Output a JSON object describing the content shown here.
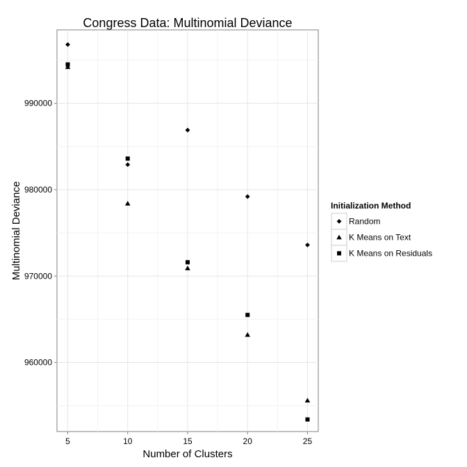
{
  "chart_data": {
    "type": "scatter",
    "title": "Congress Data: Multinomial Deviance",
    "xlabel": "Number of Clusters",
    "ylabel": "Multinomial Deviance",
    "xlim": [
      4.1,
      25.9
    ],
    "ylim": [
      952000,
      998500
    ],
    "x_ticks": [
      5,
      10,
      15,
      20,
      25
    ],
    "y_ticks": [
      960000,
      970000,
      980000,
      990000
    ],
    "grid": true,
    "legend": {
      "title": "Initialization Method",
      "position": "right"
    },
    "series": [
      {
        "name": "Random",
        "shape": "diamond",
        "x": [
          5,
          10,
          15,
          20,
          25
        ],
        "y": [
          996800,
          982900,
          986900,
          979200,
          973600
        ]
      },
      {
        "name": "K Means on Text",
        "shape": "triangle",
        "x": [
          5,
          10,
          15,
          20,
          25
        ],
        "y": [
          994200,
          978400,
          970900,
          963200,
          955600
        ]
      },
      {
        "name": "K Means on Residuals",
        "shape": "square",
        "x": [
          5,
          10,
          15,
          20,
          25
        ],
        "y": [
          994500,
          983600,
          971600,
          965500,
          953400
        ]
      }
    ]
  }
}
